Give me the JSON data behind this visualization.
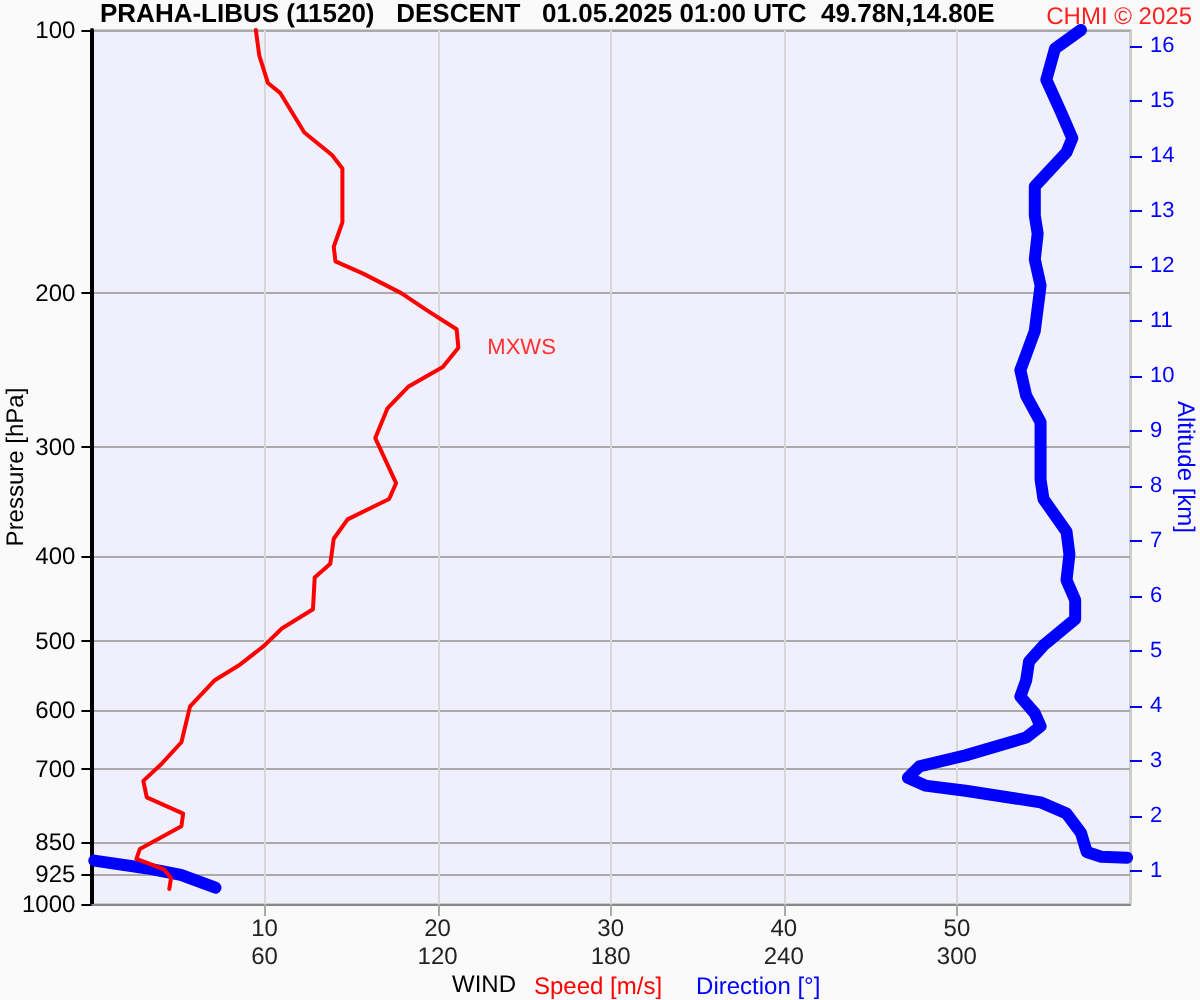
{
  "chart_data": {
    "type": "line",
    "title": "PRAHA-LIBUS (11520)   DESCENT   01.05.2025 01:00 UTC  49.78N,14.80E",
    "xlabel": "WIND",
    "ylabel": "Pressure [hPa]",
    "y2label": "Altitude [km]",
    "annotations": [
      "CHMI © 2025",
      {
        "text": "MXWS",
        "x": 21.2,
        "y": 231
      }
    ],
    "xlim": [
      0,
      60
    ],
    "xticks": [
      10,
      20,
      30,
      40,
      50
    ],
    "x2lim": [
      0,
      360
    ],
    "x2ticks": [
      60,
      120,
      180,
      240,
      300
    ],
    "ylim": [
      1000,
      100
    ],
    "yticks": [
      100,
      200,
      300,
      400,
      500,
      600,
      700,
      850,
      925,
      1000
    ],
    "y2lim": [
      0.4,
      16.3
    ],
    "y2ticks": [
      1,
      2,
      3,
      4,
      5,
      6,
      7,
      8,
      9,
      10,
      11,
      12,
      13,
      14,
      15,
      16
    ],
    "log": "y",
    "grid": true,
    "legend": "bottom",
    "marker": "none",
    "line_style": "solid",
    "series": [
      {
        "name": "Speed [m/s]",
        "color": "#ff0000",
        "x": [
          9.5,
          9.7,
          10.2,
          10.9,
          12.3,
          13.9,
          14.5,
          14.5,
          14.0,
          14.1,
          15.7,
          17.9,
          19.5,
          21.1,
          21.2,
          20.3,
          18.3,
          17.1,
          16.4,
          17.0,
          17.6,
          17.2,
          14.8,
          14.0,
          13.8,
          12.9,
          12.8,
          11.0,
          10.0,
          8.6,
          7.1,
          5.7,
          5.2,
          4.0,
          3.0,
          3.2,
          5.3,
          5.2,
          2.8,
          2.6,
          4.2,
          4.6,
          4.5
        ],
        "values": [
          100,
          107,
          115,
          118,
          131,
          139,
          144,
          166,
          177,
          184,
          190,
          200,
          210,
          220,
          231,
          243,
          256,
          271,
          293,
          311,
          330,
          344,
          363,
          382,
          408,
          423,
          460,
          484,
          506,
          532,
          555,
          594,
          653,
          693,
          723,
          755,
          788,
          815,
          865,
          888,
          913,
          934,
          961
        ]
      },
      {
        "name": "Direction [°]",
        "color": "#0000ff",
        "axis": "x2",
        "x": [
          343,
          334,
          331,
          336,
          340,
          338,
          327,
          327,
          328,
          327,
          329,
          327,
          322,
          324,
          329,
          329,
          330,
          338,
          339,
          338,
          341,
          341,
          330,
          325,
          324,
          322,
          327,
          329,
          324,
          303,
          287,
          283,
          289,
          303,
          329,
          338,
          343,
          345,
          350,
          359,
          null,
          1,
          19,
          31,
          43
        ],
        "values": [
          100,
          105,
          114,
          124,
          133,
          138,
          151,
          163,
          171,
          183,
          196,
          221,
          245,
          262,
          281,
          327,
          344,
          375,
          398,
          426,
          449,
          472,
          506,
          528,
          555,
          579,
          605,
          626,
          645,
          676,
          696,
          717,
          732,
          742,
          765,
          788,
          829,
          872,
          883,
          885,
          null,
          892,
          910,
          926,
          958
        ]
      }
    ]
  }
}
